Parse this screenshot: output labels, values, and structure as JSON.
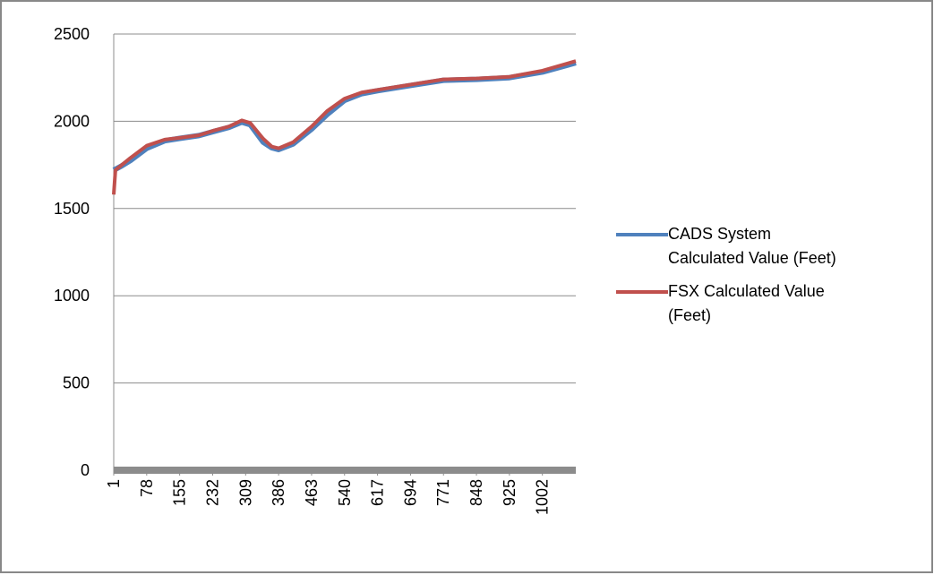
{
  "chart_data": {
    "type": "line",
    "x": [
      1,
      5,
      20,
      40,
      78,
      120,
      155,
      200,
      232,
      270,
      300,
      320,
      350,
      370,
      386,
      420,
      463,
      500,
      540,
      580,
      617,
      694,
      771,
      848,
      925,
      1002,
      1080
    ],
    "xlim": [
      1,
      1080
    ],
    "xticks": [
      1,
      78,
      155,
      232,
      309,
      386,
      463,
      540,
      617,
      694,
      771,
      848,
      925,
      1002
    ],
    "ylim": [
      0,
      2500
    ],
    "yticks": [
      0,
      500,
      1000,
      1500,
      2000,
      2500
    ],
    "grid": true,
    "legend": "right",
    "series": [
      {
        "name": "CADS System Calculated Value (Feet)",
        "color": "#4f81bd",
        "values": [
          1720,
          1725,
          1745,
          1775,
          1845,
          1888,
          1902,
          1918,
          1940,
          1965,
          1995,
          1980,
          1880,
          1848,
          1838,
          1870,
          1955,
          2040,
          2120,
          2158,
          2175,
          2205,
          2235,
          2240,
          2250,
          2282,
          2335
        ]
      },
      {
        "name": "FSX Calculated Value (Feet)",
        "color": "#c0504d",
        "values": [
          1580,
          1720,
          1750,
          1790,
          1860,
          1895,
          1905,
          1920,
          1945,
          1970,
          2005,
          1990,
          1900,
          1855,
          1845,
          1880,
          1970,
          2060,
          2130,
          2165,
          2180,
          2210,
          2240,
          2245,
          2255,
          2290,
          2345
        ]
      }
    ]
  }
}
